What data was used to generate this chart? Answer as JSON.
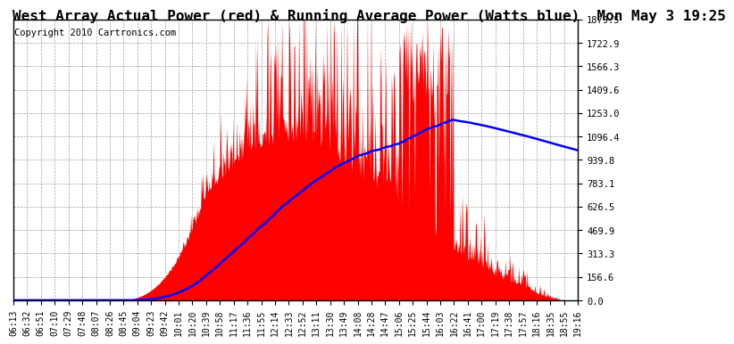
{
  "title": "West Array Actual Power (red) & Running Average Power (Watts blue)  Mon May 3 19:25",
  "copyright": "Copyright 2010 Cartronics.com",
  "yticks": [
    0.0,
    156.6,
    313.3,
    469.9,
    626.5,
    783.1,
    939.8,
    1096.4,
    1253.0,
    1409.6,
    1566.3,
    1722.9,
    1879.5
  ],
  "ymax": 1879.5,
  "bg_color": "#ffffff",
  "plot_bg": "#ffffff",
  "grid_color": "#888888",
  "actual_color": "red",
  "avg_color": "blue",
  "title_fontsize": 11.5,
  "copyright_fontsize": 7.5,
  "tick_fontsize": 7.5,
  "xtick_labels": [
    "06:13",
    "06:32",
    "06:51",
    "07:10",
    "07:29",
    "07:48",
    "08:07",
    "08:26",
    "08:45",
    "09:04",
    "09:23",
    "09:42",
    "10:01",
    "10:20",
    "10:39",
    "10:58",
    "11:17",
    "11:36",
    "11:55",
    "12:14",
    "12:33",
    "12:52",
    "13:11",
    "13:30",
    "13:49",
    "14:08",
    "14:28",
    "14:47",
    "15:06",
    "15:25",
    "15:44",
    "16:03",
    "16:22",
    "16:41",
    "17:00",
    "17:19",
    "17:38",
    "17:57",
    "18:16",
    "18:35",
    "18:55",
    "19:16"
  ],
  "n_fine": 800
}
